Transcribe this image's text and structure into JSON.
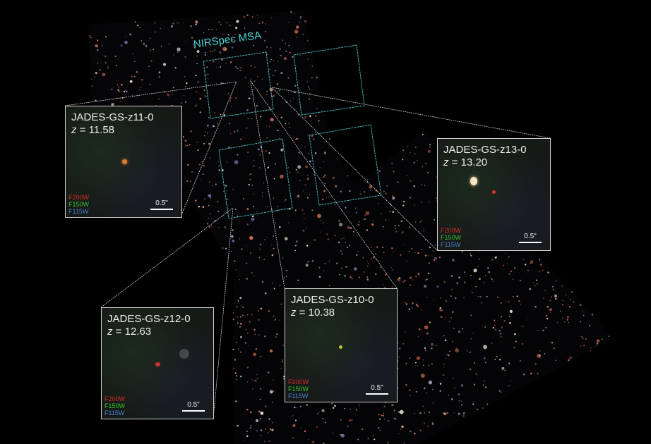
{
  "msa_label": "NIRSpec MSA",
  "colors": {
    "msa": "#4ad0d0",
    "f200w": "#d42a2a",
    "f150w": "#34c234",
    "f115w": "#4a7fd6",
    "frame": "#cfcfcf"
  },
  "insets": [
    {
      "name": "JADES-GS-z11-0",
      "z_label": "z",
      "z_value": "= 11.58",
      "filters": [
        "F200W",
        "F150W",
        "F115W"
      ],
      "scale": "0.5\""
    },
    {
      "name": "JADES-GS-z13-0",
      "z_label": "z",
      "z_value": "= 13.20",
      "filters": [
        "F200W",
        "F150W",
        "F115W"
      ],
      "scale": "0.5\""
    },
    {
      "name": "JADES-GS-z12-0",
      "z_label": "z",
      "z_value": "= 12.63",
      "filters": [
        "F200W",
        "F150W",
        "F115W"
      ],
      "scale": "0.5\""
    },
    {
      "name": "JADES-GS-z10-0",
      "z_label": "z",
      "z_value": "= 10.38",
      "filters": [
        "F200W",
        "F150W",
        "F115W"
      ],
      "scale": "0.5\""
    }
  ]
}
